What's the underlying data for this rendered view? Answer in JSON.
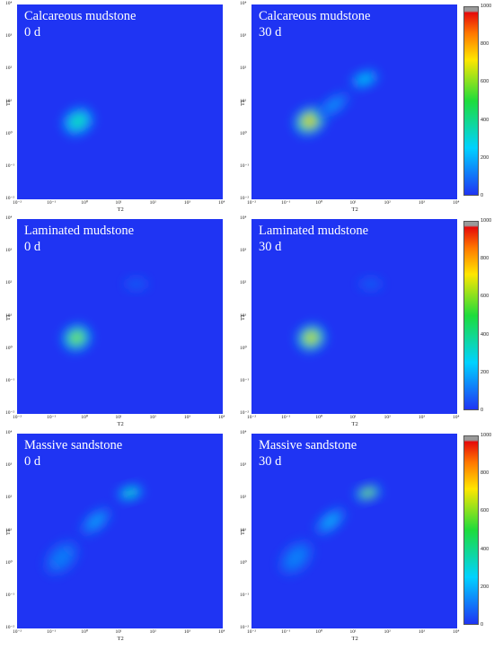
{
  "chart_data": [
    {
      "type": "heatmap",
      "title": "Calcareous mudstone",
      "subtitle": "0 d",
      "xlabel": "T2",
      "ylabel": "T1",
      "x_ticks": [
        "10⁻²",
        "10⁻¹",
        "10⁰",
        "10¹",
        "10²",
        "10³",
        "10⁴"
      ],
      "y_ticks": [
        "10⁻²",
        "10⁻¹",
        "10⁰",
        "10¹",
        "10²",
        "10³",
        "10⁴"
      ],
      "x_log_range": [
        -2,
        4
      ],
      "y_log_range": [
        -2,
        4
      ],
      "peaks": [
        {
          "x": 0.6,
          "y": 2.5,
          "intensity": 450,
          "sx": 0.5,
          "sy": 0.42,
          "rot": -30
        }
      ]
    },
    {
      "type": "heatmap",
      "title": "Calcareous mudstone",
      "subtitle": "30 d",
      "xlabel": "T2",
      "ylabel": "T1",
      "x_ticks": [
        "10⁻²",
        "10⁻¹",
        "10⁰",
        "10¹",
        "10²",
        "10³",
        "10⁴"
      ],
      "y_ticks": [
        "10⁻²",
        "10⁻¹",
        "10⁰",
        "10¹",
        "10²",
        "10³",
        "10⁴"
      ],
      "x_log_range": [
        -2,
        4
      ],
      "y_log_range": [
        -2,
        4
      ],
      "peaks": [
        {
          "x": 0.5,
          "y": 2.6,
          "intensity": 900,
          "sx": 0.5,
          "sy": 0.42,
          "rot": -30
        },
        {
          "x": 20,
          "y": 50,
          "intensity": 300,
          "sx": 0.45,
          "sy": 0.25,
          "rot": -20
        },
        {
          "x": 2.5,
          "y": 8,
          "intensity": 180,
          "sx": 0.55,
          "sy": 0.25,
          "rot": -35
        }
      ],
      "colorbar": {
        "min": 0,
        "max": 1000,
        "ticks": [
          0,
          200,
          400,
          600,
          800,
          1000
        ]
      }
    },
    {
      "type": "heatmap",
      "title": "Laminated mudstone",
      "subtitle": "0 d",
      "xlabel": "T2",
      "ylabel": "T1",
      "x_ticks": [
        "10⁻²",
        "10⁻¹",
        "10⁰",
        "10¹",
        "10²",
        "10³",
        "10⁴"
      ],
      "y_ticks": [
        "10⁻²",
        "10⁻¹",
        "10⁰",
        "10¹",
        "10²",
        "10³",
        "10⁴"
      ],
      "x_log_range": [
        -2,
        4
      ],
      "y_log_range": [
        -2,
        4
      ],
      "peaks": [
        {
          "x": 0.55,
          "y": 2.2,
          "intensity": 700,
          "sx": 0.45,
          "sy": 0.42,
          "rot": -25
        },
        {
          "x": 30,
          "y": 100,
          "intensity": 60,
          "sx": 0.35,
          "sy": 0.2,
          "rot": 0
        }
      ]
    },
    {
      "type": "heatmap",
      "title": "Laminated mudstone",
      "subtitle": "30 d",
      "xlabel": "T2",
      "ylabel": "T1",
      "x_ticks": [
        "10⁻²",
        "10⁻¹",
        "10⁰",
        "10¹",
        "10²",
        "10³",
        "10⁴"
      ],
      "y_ticks": [
        "10⁻²",
        "10⁻¹",
        "10⁰",
        "10¹",
        "10²",
        "10³",
        "10⁴"
      ],
      "x_log_range": [
        -2,
        4
      ],
      "y_log_range": [
        -2,
        4
      ],
      "peaks": [
        {
          "x": 0.55,
          "y": 2.2,
          "intensity": 850,
          "sx": 0.45,
          "sy": 0.42,
          "rot": -25
        },
        {
          "x": 30,
          "y": 100,
          "intensity": 60,
          "sx": 0.35,
          "sy": 0.2,
          "rot": 0
        }
      ],
      "colorbar": {
        "min": 0,
        "max": 1000,
        "ticks": [
          0,
          200,
          400,
          600,
          800,
          1000
        ]
      }
    },
    {
      "type": "heatmap",
      "title": "Massive sandstone",
      "subtitle": "0 d",
      "xlabel": "T2",
      "ylabel": "T1",
      "x_ticks": [
        "10⁻²",
        "10⁻¹",
        "10⁰",
        "10¹",
        "10²",
        "10³",
        "10⁴"
      ],
      "y_ticks": [
        "10⁻²",
        "10⁻¹",
        "10⁰",
        "10¹",
        "10²",
        "10³",
        "10⁴"
      ],
      "x_log_range": [
        -2,
        4
      ],
      "y_log_range": [
        -2,
        4
      ],
      "peaks": [
        {
          "x": 20,
          "y": 150,
          "intensity": 450,
          "sx": 0.4,
          "sy": 0.22,
          "rot": -15
        },
        {
          "x": 2,
          "y": 20,
          "intensity": 200,
          "sx": 0.55,
          "sy": 0.28,
          "rot": -40
        },
        {
          "x": 0.2,
          "y": 1.5,
          "intensity": 130,
          "sx": 0.6,
          "sy": 0.4,
          "rot": -45
        }
      ]
    },
    {
      "type": "heatmap",
      "title": "Massive sandstone",
      "subtitle": "30 d",
      "xlabel": "T2",
      "ylabel": "T1",
      "x_ticks": [
        "10⁻²",
        "10⁻¹",
        "10⁰",
        "10¹",
        "10²",
        "10³",
        "10⁴"
      ],
      "y_ticks": [
        "10⁻²",
        "10⁻¹",
        "10⁰",
        "10¹",
        "10²",
        "10³",
        "10⁴"
      ],
      "x_log_range": [
        -2,
        4
      ],
      "y_log_range": [
        -2,
        4
      ],
      "peaks": [
        {
          "x": 25,
          "y": 150,
          "intensity": 750,
          "sx": 0.4,
          "sy": 0.22,
          "rot": -15
        },
        {
          "x": 2,
          "y": 20,
          "intensity": 230,
          "sx": 0.55,
          "sy": 0.28,
          "rot": -40
        },
        {
          "x": 0.2,
          "y": 1.5,
          "intensity": 140,
          "sx": 0.6,
          "sy": 0.4,
          "rot": -45
        }
      ],
      "colorbar": {
        "min": 0,
        "max": 1000,
        "ticks": [
          0,
          200,
          400,
          600,
          800,
          1000
        ]
      }
    }
  ]
}
